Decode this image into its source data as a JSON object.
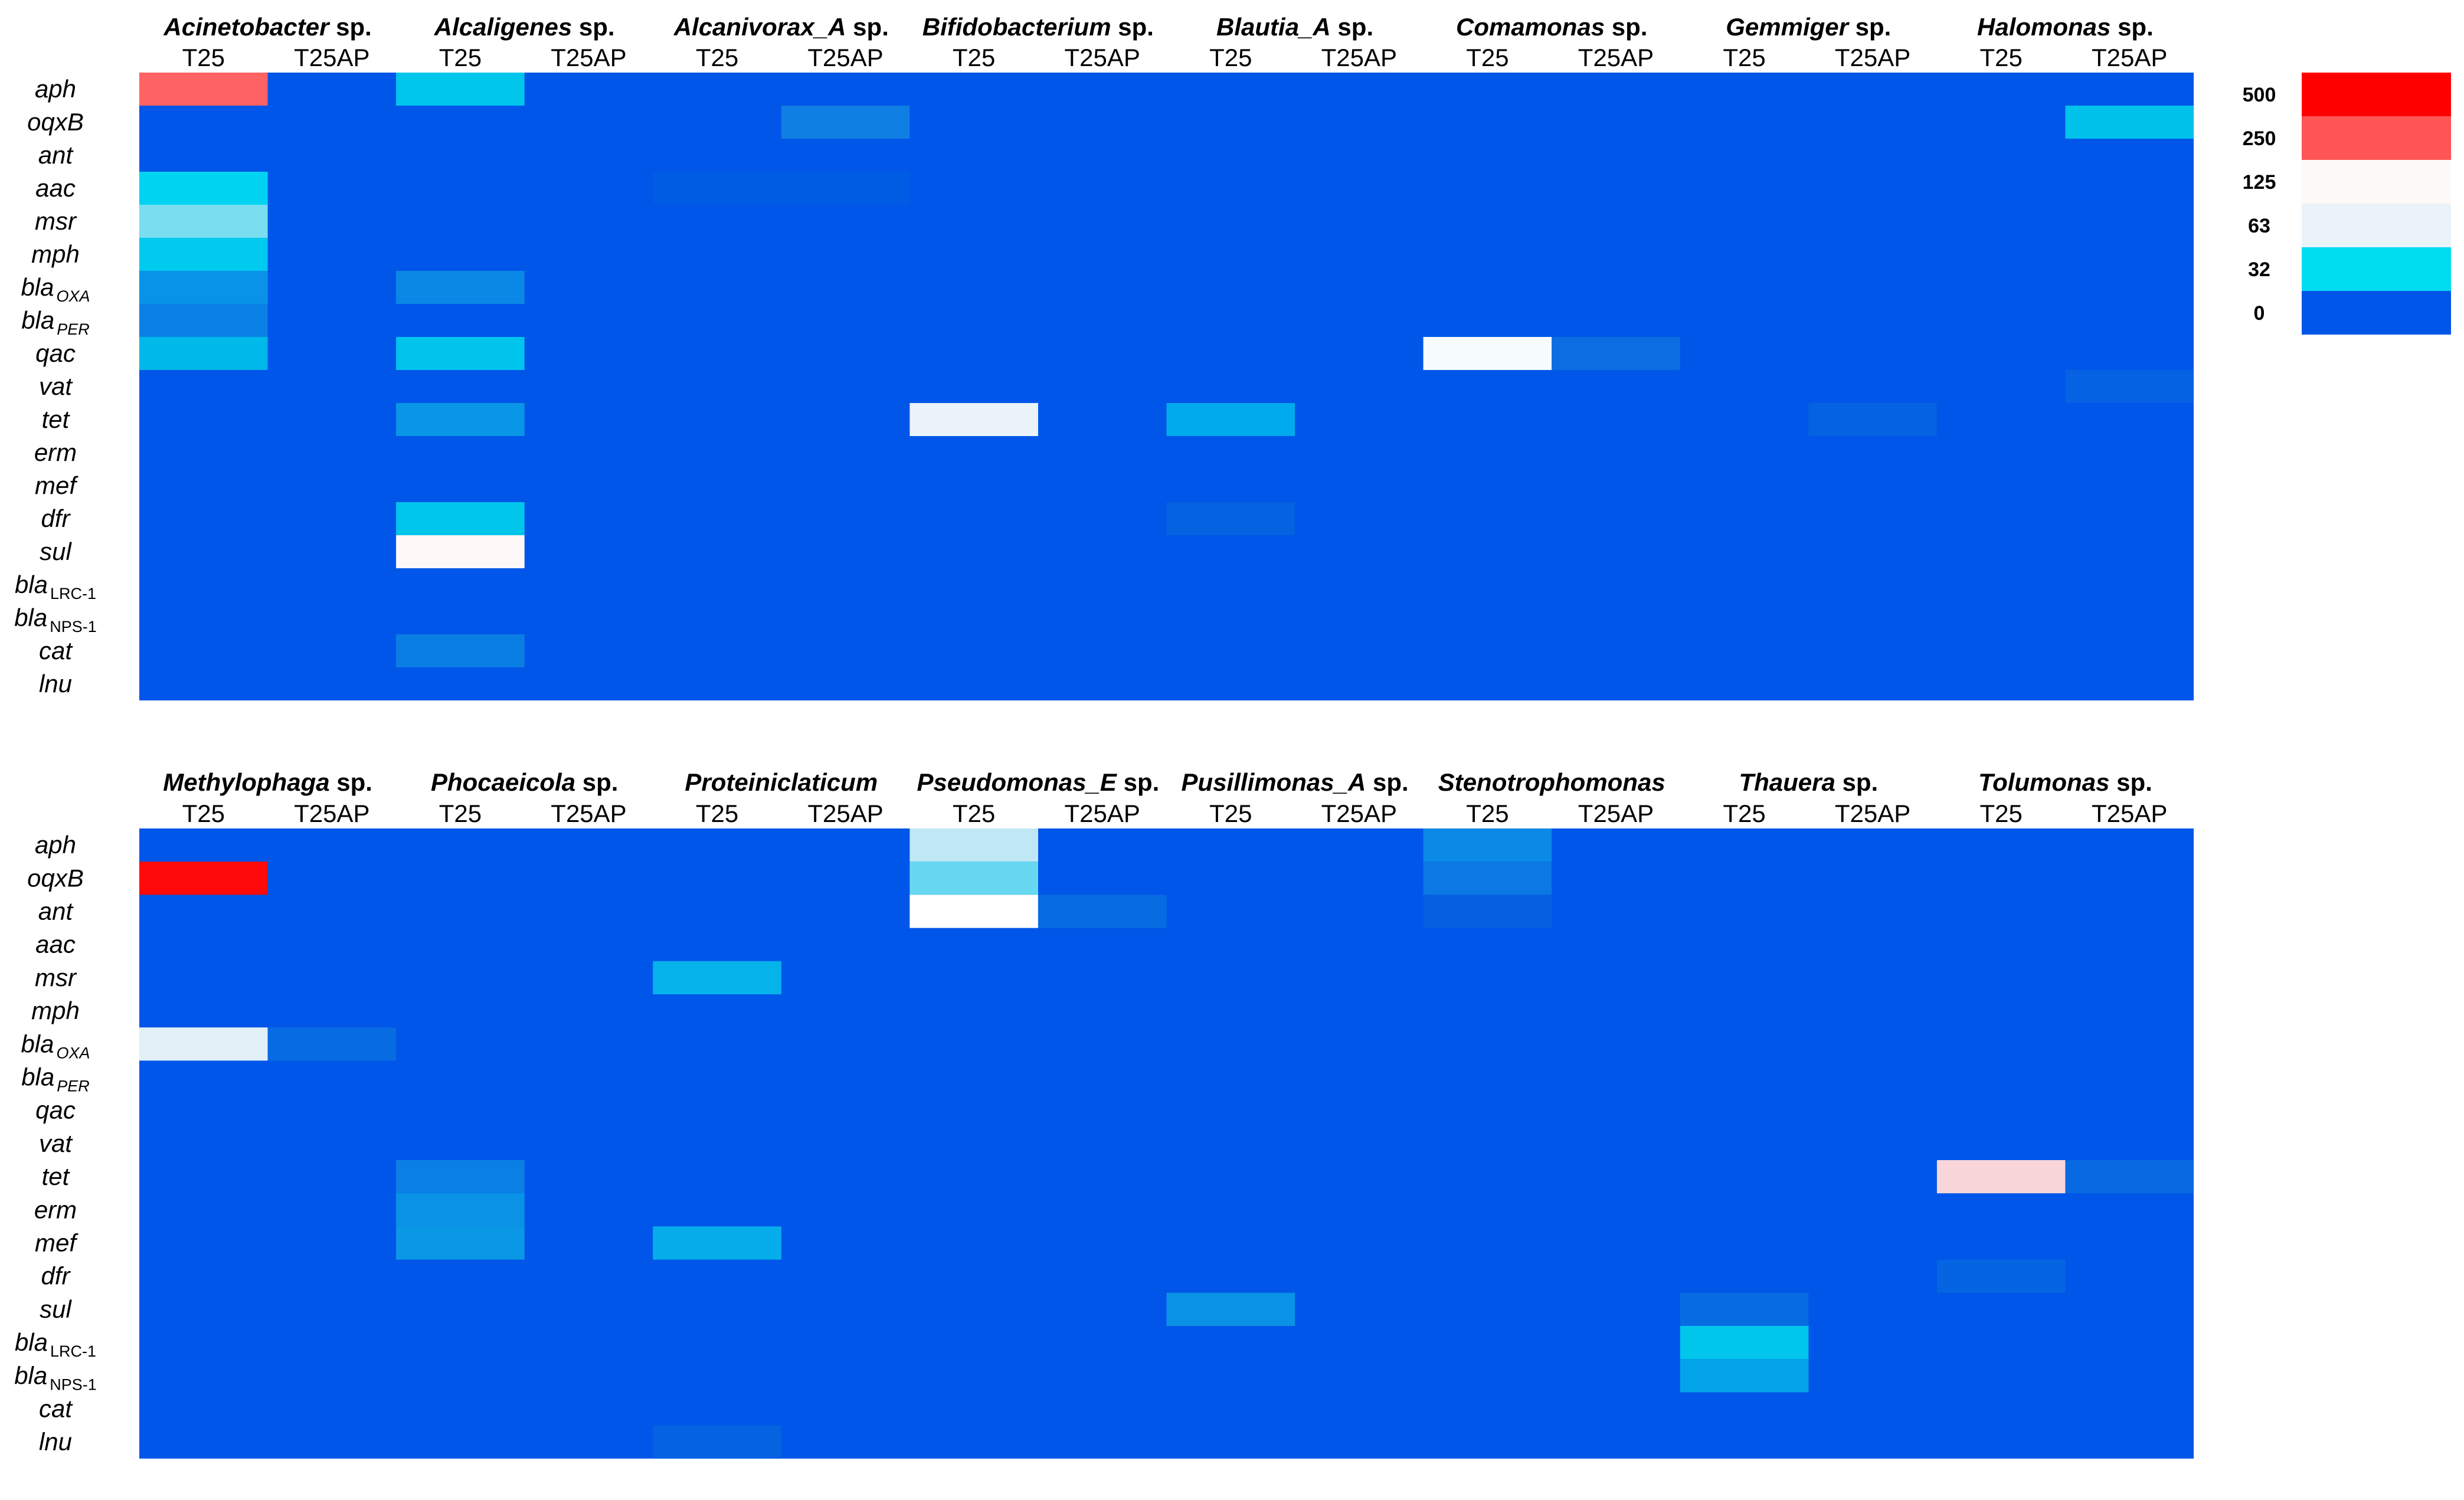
{
  "chart_data": {
    "type": "heatmap",
    "legend": {
      "position": "right",
      "levels": [
        {
          "label": "500",
          "color": "#ff0000"
        },
        {
          "label": "250",
          "color": "#ff5555"
        },
        {
          "label": "125",
          "color": "#fefaf8"
        },
        {
          "label": "63",
          "color": "#eaf3f9"
        },
        {
          "label": "32",
          "color": "#00dcf0"
        },
        {
          "label": "0",
          "color": "#0056e8"
        }
      ]
    },
    "column_labels": [
      "T25",
      "T25AP"
    ],
    "rows": [
      {
        "gene": "aph"
      },
      {
        "gene": "oqxB"
      },
      {
        "gene": "ant"
      },
      {
        "gene": "aac"
      },
      {
        "gene": "msr"
      },
      {
        "gene": "mph"
      },
      {
        "gene": "bla",
        "sub": "OXA"
      },
      {
        "gene": "bla",
        "sub": "PER"
      },
      {
        "gene": "qac"
      },
      {
        "gene": "vat"
      },
      {
        "gene": "tet"
      },
      {
        "gene": "erm"
      },
      {
        "gene": "mef"
      },
      {
        "gene": "dfr"
      },
      {
        "gene": "sul"
      },
      {
        "gene": "bla",
        "sub": "LRC-1"
      },
      {
        "gene": "bla",
        "sub": "NPS-1"
      },
      {
        "gene": "cat"
      },
      {
        "gene": "lnu"
      }
    ],
    "panels": [
      {
        "taxa": [
          {
            "name": "Acinetobacter",
            "suffix": " sp."
          },
          {
            "name": "Alcaligenes",
            "suffix": " sp."
          },
          {
            "name": "Alcanivorax_A",
            "suffix": " sp."
          },
          {
            "name": "Bifidobacterium",
            "suffix": " sp."
          },
          {
            "name": "Blautia_A",
            "suffix": " sp."
          },
          {
            "name": "Comamonas",
            "suffix": " sp."
          },
          {
            "name": "Gemmiger",
            "suffix": " sp."
          },
          {
            "name": "Halomonas",
            "suffix": " sp."
          }
        ],
        "cells": [
          {
            "row": 0,
            "col": 0,
            "value": 250,
            "color": "#ff6262"
          },
          {
            "row": 0,
            "col": 2,
            "value": 32,
            "color": "#00c6ec"
          },
          {
            "row": 1,
            "col": 5,
            "value": 8,
            "color": "#0f7fe4"
          },
          {
            "row": 1,
            "col": 15,
            "value": 32,
            "color": "#00c2ea"
          },
          {
            "row": 3,
            "col": 0,
            "value": 32,
            "color": "#00d4f2"
          },
          {
            "row": 3,
            "col": 4,
            "value": 1,
            "color": "#005ce2"
          },
          {
            "row": 3,
            "col": 5,
            "value": 1,
            "color": "#005ce2"
          },
          {
            "row": 4,
            "col": 0,
            "value": 40,
            "color": "#7addf0"
          },
          {
            "row": 5,
            "col": 0,
            "value": 32,
            "color": "#00caee"
          },
          {
            "row": 6,
            "col": 0,
            "value": 10,
            "color": "#0993e8"
          },
          {
            "row": 6,
            "col": 2,
            "value": 8,
            "color": "#0b88e6"
          },
          {
            "row": 7,
            "col": 0,
            "value": 6,
            "color": "#0b80e6"
          },
          {
            "row": 8,
            "col": 0,
            "value": 24,
            "color": "#00b8ea"
          },
          {
            "row": 8,
            "col": 2,
            "value": 32,
            "color": "#00c4ec"
          },
          {
            "row": 8,
            "col": 10,
            "value": 125,
            "color": "#f6fbfe"
          },
          {
            "row": 8,
            "col": 11,
            "value": 2,
            "color": "#0a6ee2"
          },
          {
            "row": 9,
            "col": 15,
            "value": 1,
            "color": "#0562e2"
          },
          {
            "row": 10,
            "col": 2,
            "value": 10,
            "color": "#0996e6"
          },
          {
            "row": 10,
            "col": 6,
            "value": 63,
            "color": "#eaf3f9"
          },
          {
            "row": 10,
            "col": 8,
            "value": 16,
            "color": "#00aaec"
          },
          {
            "row": 10,
            "col": 13,
            "value": 1,
            "color": "#0562e0"
          },
          {
            "row": 13,
            "col": 2,
            "value": 32,
            "color": "#00c6ec"
          },
          {
            "row": 13,
            "col": 8,
            "value": 1,
            "color": "#0562e0"
          },
          {
            "row": 14,
            "col": 2,
            "value": 125,
            "color": "#fff8f8"
          },
          {
            "row": 17,
            "col": 2,
            "value": 4,
            "color": "#0b7ee4"
          }
        ]
      },
      {
        "taxa": [
          {
            "name": "Methylophaga",
            "suffix": " sp."
          },
          {
            "name": "Phocaeicola",
            "suffix": " sp."
          },
          {
            "name": "Proteiniclaticum",
            "suffix": ""
          },
          {
            "name": "Pseudomonas_E",
            "suffix": " sp."
          },
          {
            "name": "Pusillimonas_A",
            "suffix": " sp."
          },
          {
            "name": "Stenotrophomonas",
            "suffix": ""
          },
          {
            "name": "Thauera",
            "suffix": " sp."
          },
          {
            "name": "Tolumonas",
            "suffix": " sp."
          }
        ],
        "cells": [
          {
            "row": 1,
            "col": 0,
            "value": 500,
            "color": "#ff0a0a"
          },
          {
            "row": 6,
            "col": 0,
            "value": 63,
            "color": "#e2f0f8"
          },
          {
            "row": 6,
            "col": 1,
            "value": 2,
            "color": "#076be2"
          },
          {
            "row": 10,
            "col": 2,
            "value": 4,
            "color": "#0b80e4"
          },
          {
            "row": 11,
            "col": 2,
            "value": 10,
            "color": "#0a92e6"
          },
          {
            "row": 12,
            "col": 2,
            "value": 12,
            "color": "#0a98e6"
          },
          {
            "row": 4,
            "col": 4,
            "value": 24,
            "color": "#05b2ea"
          },
          {
            "row": 12,
            "col": 4,
            "value": 24,
            "color": "#05aeea"
          },
          {
            "row": 18,
            "col": 4,
            "value": 1,
            "color": "#0562e0"
          },
          {
            "row": 0,
            "col": 6,
            "value": 63,
            "color": "#bfe8f4"
          },
          {
            "row": 1,
            "col": 6,
            "value": 40,
            "color": "#66d8f0"
          },
          {
            "row": 2,
            "col": 6,
            "value": 125,
            "color": "#ffffff"
          },
          {
            "row": 2,
            "col": 7,
            "value": 2,
            "color": "#076be2"
          },
          {
            "row": 14,
            "col": 8,
            "value": 8,
            "color": "#0a92e6"
          },
          {
            "row": 0,
            "col": 10,
            "value": 8,
            "color": "#0a8ae6"
          },
          {
            "row": 1,
            "col": 10,
            "value": 4,
            "color": "#0b78e4"
          },
          {
            "row": 2,
            "col": 10,
            "value": 1,
            "color": "#0560e0"
          },
          {
            "row": 14,
            "col": 12,
            "value": 2,
            "color": "#076ce2"
          },
          {
            "row": 15,
            "col": 12,
            "value": 32,
            "color": "#00c6ec"
          },
          {
            "row": 16,
            "col": 12,
            "value": 16,
            "color": "#04a4ea"
          },
          {
            "row": 10,
            "col": 14,
            "value": 150,
            "color": "#f8d6da"
          },
          {
            "row": 10,
            "col": 15,
            "value": 2,
            "color": "#076ae2"
          },
          {
            "row": 13,
            "col": 14,
            "value": 1,
            "color": "#0564e2"
          }
        ]
      }
    ]
  }
}
